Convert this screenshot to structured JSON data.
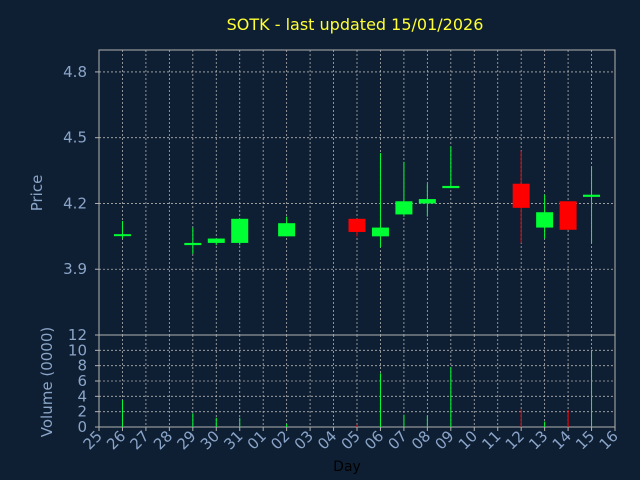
{
  "chart_data": {
    "type": "candlestick",
    "title": "SOTK - last updated 15/01/2026",
    "xlabel": "Day",
    "price_panel": {
      "ylabel": "Price",
      "ylim": [
        3.6,
        4.9
      ],
      "yticks": [
        "3.9",
        "4.2",
        "4.5",
        "4.8"
      ],
      "ytick_values": [
        3.9,
        4.2,
        4.5,
        4.8
      ]
    },
    "volume_panel": {
      "ylabel": "Volume (0000)",
      "ylim": [
        0,
        12
      ],
      "yticks": [
        "0",
        "2",
        "4",
        "6",
        "8",
        "10",
        "12"
      ],
      "ytick_values": [
        0,
        2,
        4,
        6,
        8,
        10,
        12
      ]
    },
    "x_ticks": [
      "25",
      "26",
      "27",
      "28",
      "29",
      "30",
      "31",
      "01",
      "02",
      "03",
      "04",
      "05",
      "06",
      "07",
      "08",
      "09",
      "10",
      "11",
      "12",
      "13",
      "14",
      "15",
      "16"
    ],
    "candles": [
      {
        "day": "26",
        "open": 4.06,
        "high": 4.12,
        "low": 4.04,
        "close": 4.06,
        "volume": 3.5
      },
      {
        "day": "29",
        "open": 4.01,
        "high": 4.09,
        "low": 3.97,
        "close": 4.02,
        "volume": 1.8
      },
      {
        "day": "30",
        "open": 4.02,
        "high": 4.04,
        "low": 4.01,
        "close": 4.04,
        "volume": 1.2
      },
      {
        "day": "31",
        "open": 4.02,
        "high": 4.13,
        "low": 4.01,
        "close": 4.13,
        "volume": 1.2
      },
      {
        "day": "02",
        "open": 4.05,
        "high": 4.14,
        "low": 4.05,
        "close": 4.11,
        "volume": 0.4
      },
      {
        "day": "05",
        "open": 4.13,
        "high": 4.13,
        "low": 4.05,
        "close": 4.07,
        "volume": 0.3
      },
      {
        "day": "06",
        "open": 4.05,
        "high": 4.43,
        "low": 4.0,
        "close": 4.09,
        "volume": 7.0
      },
      {
        "day": "07",
        "open": 4.15,
        "high": 4.39,
        "low": 4.14,
        "close": 4.21,
        "volume": 1.6
      },
      {
        "day": "08",
        "open": 4.2,
        "high": 4.29,
        "low": 4.14,
        "close": 4.22,
        "volume": 1.4
      },
      {
        "day": "09",
        "open": 4.27,
        "high": 4.46,
        "low": 4.27,
        "close": 4.28,
        "volume": 7.8
      },
      {
        "day": "12",
        "open": 4.29,
        "high": 4.44,
        "low": 4.02,
        "close": 4.18,
        "volume": 2.3
      },
      {
        "day": "13",
        "open": 4.09,
        "high": 4.24,
        "low": 4.04,
        "close": 4.16,
        "volume": 0.7
      },
      {
        "day": "14",
        "open": 4.21,
        "high": 4.21,
        "low": 4.08,
        "close": 4.08,
        "volume": 2.2
      },
      {
        "day": "15",
        "open": 4.23,
        "high": 4.37,
        "low": 4.02,
        "close": 4.24,
        "volume": 10.0
      }
    ],
    "colors": {
      "background": "#0f1f33",
      "up": "#00ff33",
      "down": "#ff0000",
      "grid": "#b0b0b0",
      "text": "#8aa5c8",
      "title": "#ffff33"
    },
    "grid": true
  }
}
